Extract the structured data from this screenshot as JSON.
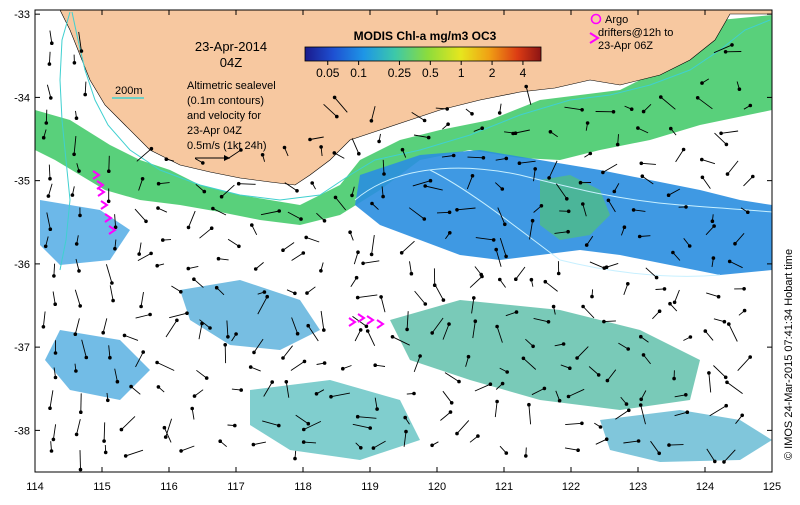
{
  "map": {
    "date": "23-Apr-2014",
    "time": "04Z",
    "isobath_label": "200m",
    "altimetry_note": [
      "Altimetric sealevel",
      "(0.1m contours)",
      "and velocity for",
      "23-Apr 04Z"
    ],
    "velocity_scale": "0.5m/s (1kt 24h)",
    "colorbar": {
      "title": "MODIS Chl-a mg/m3 OC3",
      "tick_labels": [
        "0.05",
        "0.1",
        "0.25",
        "0.5",
        "1",
        "2",
        "4"
      ],
      "tick_values": [
        0.05,
        0.1,
        0.25,
        0.5,
        1,
        2,
        4
      ],
      "range": [
        0.03,
        6
      ],
      "scale": "log",
      "colors": [
        "#1a1a8c",
        "#1e50d2",
        "#1e96e6",
        "#3cc8aa",
        "#8cdc3c",
        "#e6e61e",
        "#f0a014",
        "#dc3c14",
        "#8c1414"
      ]
    },
    "legend_argo": {
      "symbol_color": "#ff00ff",
      "text": [
        "Argo",
        "drifters@12h to",
        "23-Apr 06Z"
      ]
    },
    "credit": "© IMOS 24-Mar-2015 07:41:34 Hobart time",
    "lon_ticks": [
      "114",
      "115",
      "116",
      "117",
      "118",
      "119",
      "120",
      "121",
      "122",
      "123",
      "124",
      "125"
    ],
    "lat_ticks": [
      "-33",
      "-34",
      "-35",
      "-36",
      "-37",
      "-38"
    ],
    "colors": {
      "land": "#f7c8a0",
      "isobath": "#40d0d0",
      "arrows": "#000000",
      "drifters": "#ff00ff"
    }
  }
}
